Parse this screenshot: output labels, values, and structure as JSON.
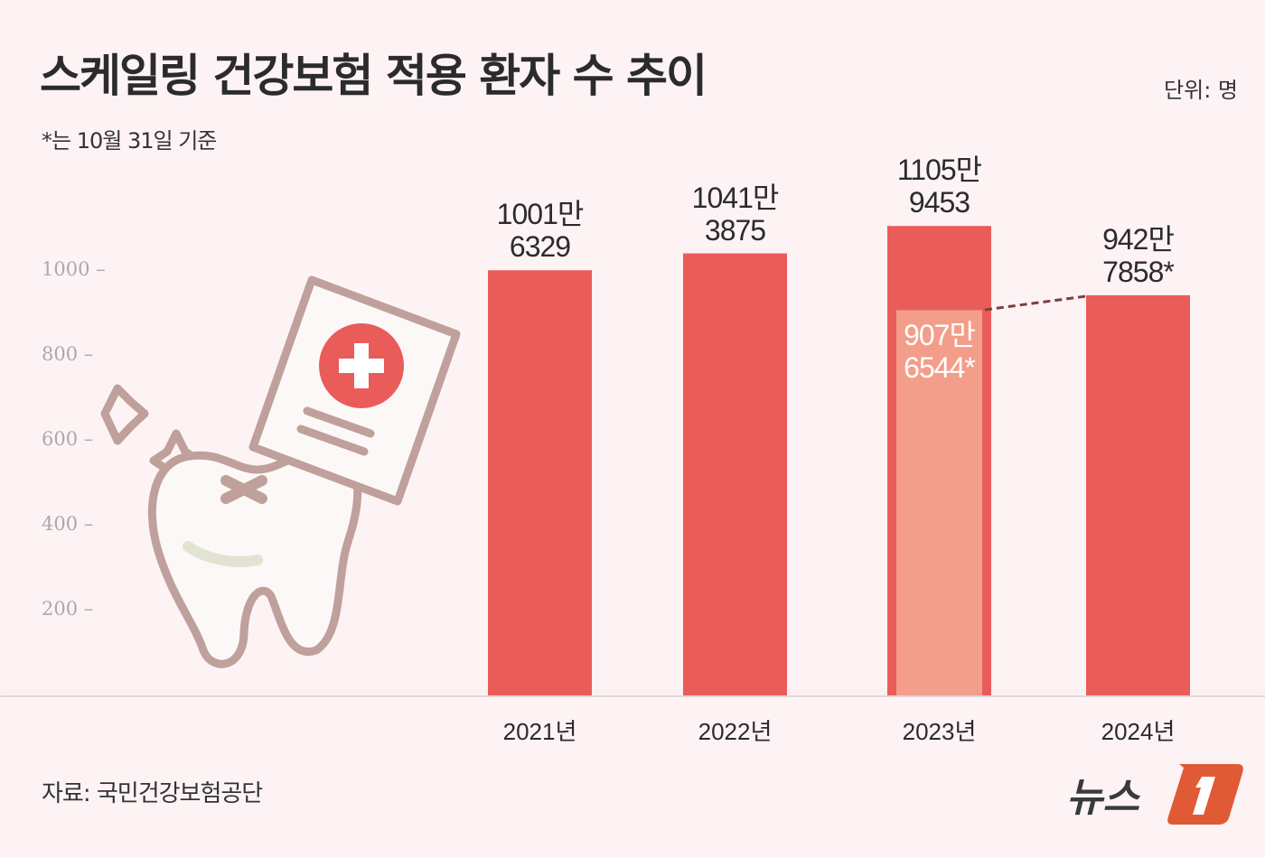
{
  "title": "스케일링 건강보험 적용 환자 수 추이",
  "note": "*는 10월 31일 기준",
  "unit": "단위: 명",
  "source": "자료: 국민건강보험공단",
  "logo_text": "뉴스1",
  "colors": {
    "bar": "#e95c5a",
    "partial_bar": "#f29e8a",
    "background": "#fdf3f4",
    "connector": "#7a3f3f"
  },
  "chart_data": {
    "type": "bar",
    "categories": [
      "2021년",
      "2022년",
      "2023년",
      "2024년"
    ],
    "values": [
      10016329,
      10413875,
      11059453,
      9427858
    ],
    "labels": [
      [
        "1001만",
        "6329"
      ],
      [
        "1041만",
        "3875"
      ],
      [
        "1105만",
        "9453"
      ],
      [
        "942만",
        "7858*"
      ]
    ],
    "partial": {
      "category": "2023년",
      "value": 9076544,
      "label": [
        "907만",
        "6544*"
      ]
    },
    "y_unit_scale": "만",
    "yticks": [
      200,
      400,
      600,
      800,
      1000
    ],
    "ylim": [
      0,
      1200
    ],
    "grid": false
  }
}
